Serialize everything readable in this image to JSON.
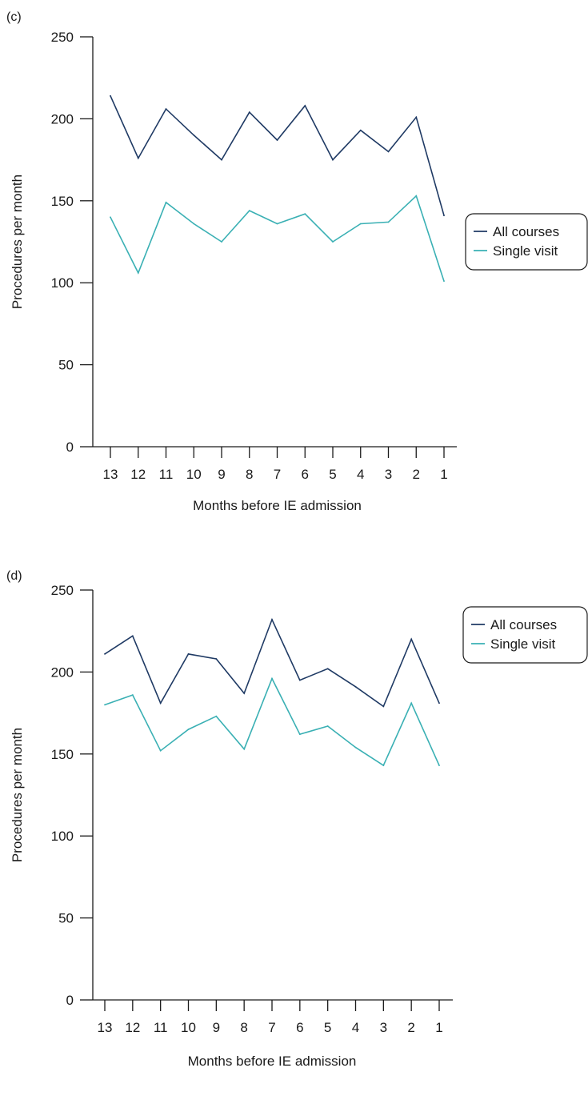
{
  "chart_data": [
    {
      "type": "line",
      "panel_label": "(c)",
      "title": "",
      "xlabel": "Months before IE admission",
      "ylabel": "Procedures per month",
      "ylim": [
        0,
        250
      ],
      "yticks": [
        0,
        50,
        100,
        150,
        200,
        250
      ],
      "categories": [
        "13",
        "12",
        "11",
        "10",
        "9",
        "8",
        "7",
        "6",
        "5",
        "4",
        "3",
        "2",
        "1"
      ],
      "legend_position": "right",
      "grid": false,
      "series": [
        {
          "name": "All courses",
          "color": "#1f3a64",
          "values": [
            214,
            176,
            206,
            190,
            175,
            204,
            187,
            208,
            175,
            193,
            180,
            201,
            141
          ]
        },
        {
          "name": "Single visit",
          "color": "#3ab0b4",
          "values": [
            140,
            106,
            149,
            136,
            125,
            144,
            136,
            142,
            125,
            136,
            137,
            153,
            101
          ]
        }
      ]
    },
    {
      "type": "line",
      "panel_label": "(d)",
      "title": "",
      "xlabel": "Months before IE admission",
      "ylabel": "Procedures per month",
      "ylim": [
        0,
        250
      ],
      "yticks": [
        0,
        50,
        100,
        150,
        200,
        250
      ],
      "categories": [
        "13",
        "12",
        "11",
        "10",
        "9",
        "8",
        "7",
        "6",
        "5",
        "4",
        "3",
        "2",
        "1"
      ],
      "legend_position": "right",
      "grid": false,
      "series": [
        {
          "name": "All courses",
          "color": "#1f3a64",
          "values": [
            211,
            222,
            181,
            211,
            208,
            187,
            232,
            195,
            202,
            191,
            179,
            220,
            181
          ]
        },
        {
          "name": "Single visit",
          "color": "#3ab0b4",
          "values": [
            180,
            186,
            152,
            165,
            173,
            153,
            196,
            162,
            167,
            154,
            143,
            181,
            143
          ]
        }
      ]
    }
  ]
}
